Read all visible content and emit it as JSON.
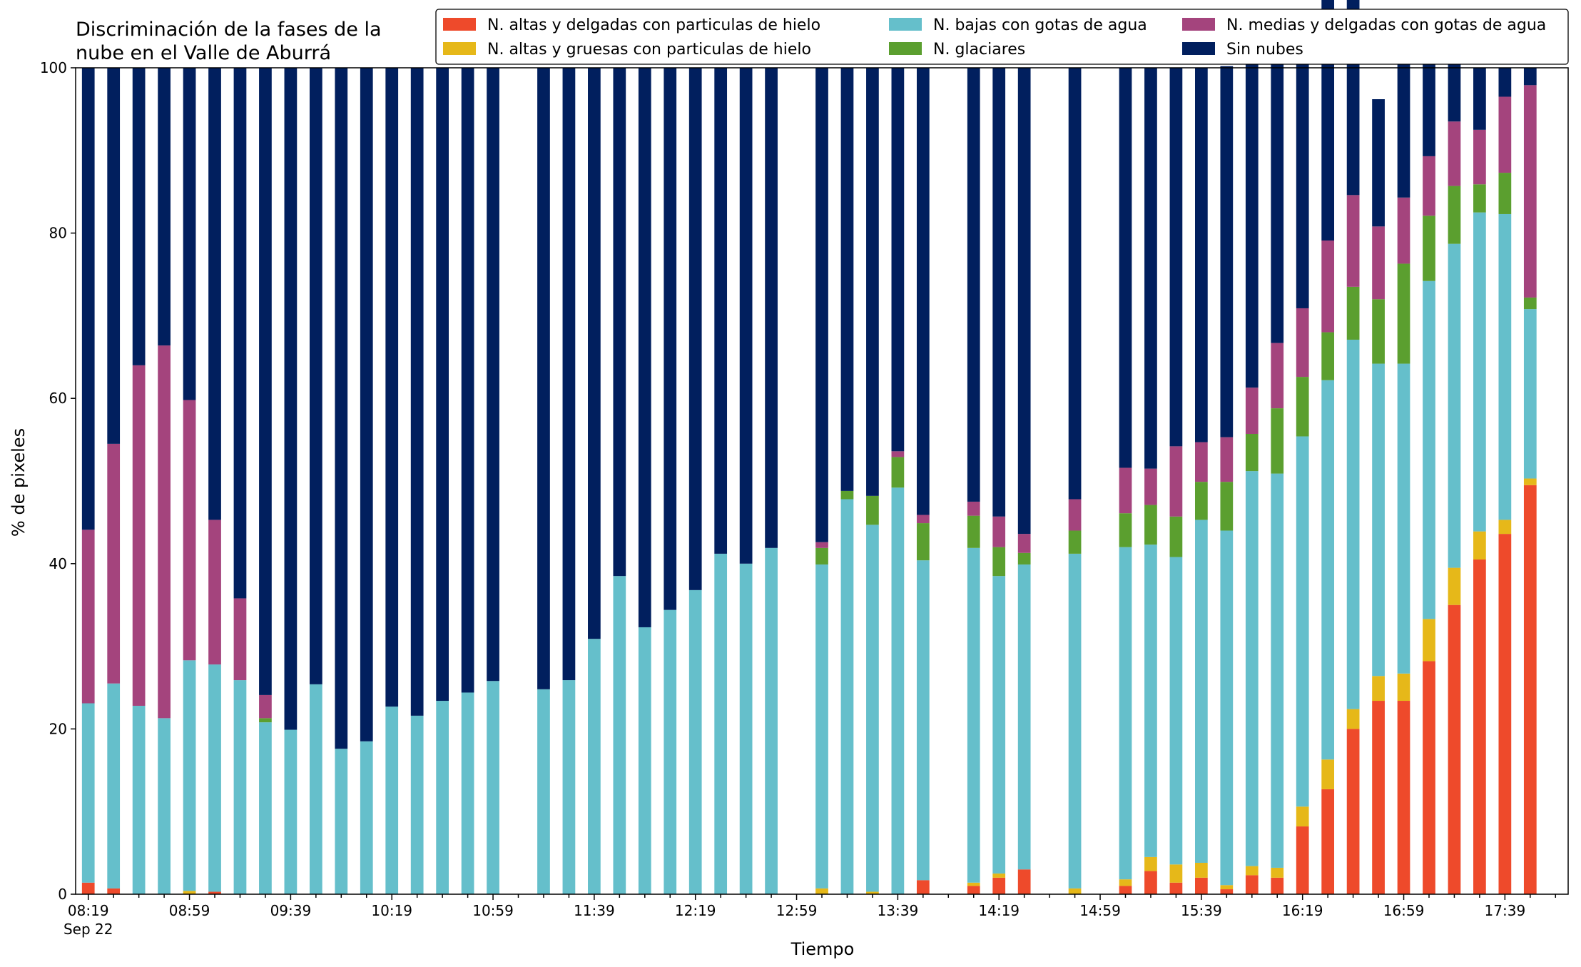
{
  "chart_data": {
    "type": "bar",
    "stacked": true,
    "title_lines": [
      "Discriminación de la fases de la",
      "nube en el Valle de Aburrá"
    ],
    "xlabel": "Tiempo",
    "ylabel": "% de pixeles",
    "ylim": [
      0,
      100
    ],
    "yticks": [
      "0",
      "20",
      "40",
      "60",
      "80",
      "100"
    ],
    "x_date_label": "Sep 22",
    "x_tick_labels": [
      "08:19",
      "08:59",
      "09:39",
      "10:19",
      "10:59",
      "11:39",
      "12:19",
      "12:59",
      "13:39",
      "14:19",
      "14:59",
      "15:39",
      "16:19",
      "16:59",
      "17:39"
    ],
    "legend_position": "top-right",
    "grid": false,
    "x_slots": 59,
    "categories": [
      "08:19",
      "08:29",
      "08:39",
      "08:49",
      "08:59",
      "09:09",
      "09:19",
      "09:29",
      "09:39",
      "09:49",
      "09:59",
      "10:09",
      "10:19",
      "10:29",
      "10:39",
      "10:49",
      "10:59",
      "11:19",
      "11:29",
      "11:39",
      "11:49",
      "11:59",
      "12:09",
      "12:19",
      "12:29",
      "12:39",
      "12:49",
      "13:09",
      "13:19",
      "13:29",
      "13:39",
      "13:49",
      "14:09",
      "14:19",
      "14:29",
      "14:49",
      "15:09",
      "15:19",
      "15:29",
      "15:39",
      "15:49",
      "15:59",
      "16:09",
      "16:19",
      "16:29",
      "16:39",
      "16:49",
      "16:59",
      "17:09",
      "17:19",
      "17:29",
      "17:39",
      "17:49"
    ],
    "slot_index": [
      0,
      1,
      2,
      3,
      4,
      5,
      6,
      7,
      8,
      9,
      10,
      11,
      12,
      13,
      14,
      15,
      16,
      18,
      19,
      20,
      21,
      22,
      23,
      24,
      25,
      26,
      27,
      29,
      30,
      31,
      32,
      33,
      35,
      36,
      37,
      39,
      41,
      42,
      43,
      44,
      45,
      46,
      47,
      48,
      49,
      50,
      51,
      52,
      53,
      54,
      55,
      56,
      57
    ],
    "series": [
      {
        "name": "N. altas y delgadas con particulas de hielo",
        "color": "#ee4a2b",
        "values": [
          1.4,
          0.7,
          0,
          0,
          0,
          0.3,
          0,
          0,
          0,
          0,
          0,
          0,
          0,
          0,
          0,
          0,
          0,
          0,
          0,
          0,
          0,
          0,
          0,
          0,
          0,
          0,
          0,
          0,
          0,
          0,
          0,
          1.7,
          1.0,
          2.0,
          3.0,
          0,
          1.0,
          2.8,
          1.4,
          2.0,
          0.6,
          2.3,
          2.0,
          8.2,
          12.7,
          20.0,
          23.4,
          23.4,
          28.2,
          35.0,
          40.5,
          43.6,
          49.5
        ]
      },
      {
        "name": "N. altas y gruesas con particulas de hielo",
        "color": "#e6b819",
        "values": [
          0,
          0,
          0,
          0,
          0.4,
          0,
          0,
          0,
          0,
          0,
          0,
          0,
          0,
          0,
          0,
          0,
          0,
          0,
          0,
          0,
          0,
          0,
          0,
          0,
          0,
          0,
          0,
          0.7,
          0,
          0.3,
          0,
          0,
          0.4,
          0.5,
          0,
          0.7,
          0.8,
          1.7,
          2.2,
          1.8,
          0.5,
          1.1,
          1.2,
          2.4,
          3.6,
          2.4,
          3.0,
          3.3,
          5.1,
          4.5,
          3.4,
          1.7,
          0.8
        ]
      },
      {
        "name": "N. bajas con gotas de agua",
        "color": "#65bfcb",
        "values": [
          21.7,
          24.8,
          22.8,
          21.3,
          27.9,
          27.5,
          25.9,
          20.8,
          19.9,
          25.4,
          17.6,
          18.5,
          22.7,
          21.6,
          23.4,
          24.4,
          25.8,
          24.8,
          25.9,
          30.9,
          38.5,
          32.3,
          34.4,
          36.8,
          41.2,
          40.0,
          41.9,
          39.2,
          47.8,
          44.4,
          49.2,
          38.7,
          40.5,
          36.0,
          36.9,
          40.5,
          40.2,
          37.8,
          37.2,
          41.5,
          42.9,
          47.8,
          47.7,
          44.8,
          45.9,
          44.7,
          37.8,
          37.5,
          40.9,
          39.2,
          38.6,
          37.0,
          20.5
        ]
      },
      {
        "name": "N. glaciares",
        "color": "#5b9f2f",
        "values": [
          0,
          0,
          0,
          0,
          0,
          0,
          0,
          0.5,
          0,
          0,
          0,
          0,
          0,
          0,
          0,
          0,
          0,
          0,
          0,
          0,
          0,
          0,
          0,
          0,
          0,
          0,
          0,
          2.0,
          1.0,
          3.5,
          3.7,
          4.5,
          3.9,
          3.5,
          1.4,
          2.8,
          4.1,
          4.8,
          4.9,
          4.6,
          5.9,
          4.5,
          7.9,
          7.2,
          5.8,
          6.4,
          7.8,
          12.1,
          7.9,
          7.0,
          3.4,
          5.0,
          1.4
        ]
      },
      {
        "name": "N. medias y delgadas con gotas de agua",
        "color": "#a4447d",
        "values": [
          21.0,
          29.0,
          41.2,
          45.1,
          31.5,
          17.5,
          9.9,
          2.8,
          0,
          0,
          0,
          0,
          0,
          0,
          0,
          0,
          0,
          0,
          0,
          0,
          0,
          0,
          0,
          0,
          0,
          0,
          0,
          0.7,
          0,
          0,
          0.7,
          1.0,
          1.7,
          3.7,
          2.3,
          3.8,
          5.5,
          4.4,
          8.5,
          4.8,
          5.4,
          5.6,
          7.9,
          8.3,
          11.1,
          11.1,
          8.8,
          8.0,
          7.2,
          7.8,
          6.6,
          9.2,
          25.7
        ]
      },
      {
        "name": "Sin nubes",
        "color": "#011f5e",
        "values": [
          55.9,
          45.5,
          36.0,
          33.6,
          40.2,
          54.7,
          64.2,
          75.9,
          80.1,
          74.6,
          82.4,
          81.5,
          77.3,
          78.4,
          76.6,
          75.6,
          74.2,
          75.2,
          74.1,
          69.1,
          61.5,
          67.7,
          65.6,
          63.2,
          58.8,
          60.0,
          58.1,
          57.4,
          51.2,
          51.8,
          46.4,
          54.1,
          52.5,
          54.3,
          56.4,
          52.2,
          48.4,
          48.5,
          45.8,
          45.3,
          44.9,
          44.7,
          38.7,
          33.3,
          29.4,
          24.4,
          15.4,
          19.2,
          15.7,
          10.7,
          7.5,
          3.5,
          2.1
        ]
      }
    ]
  }
}
